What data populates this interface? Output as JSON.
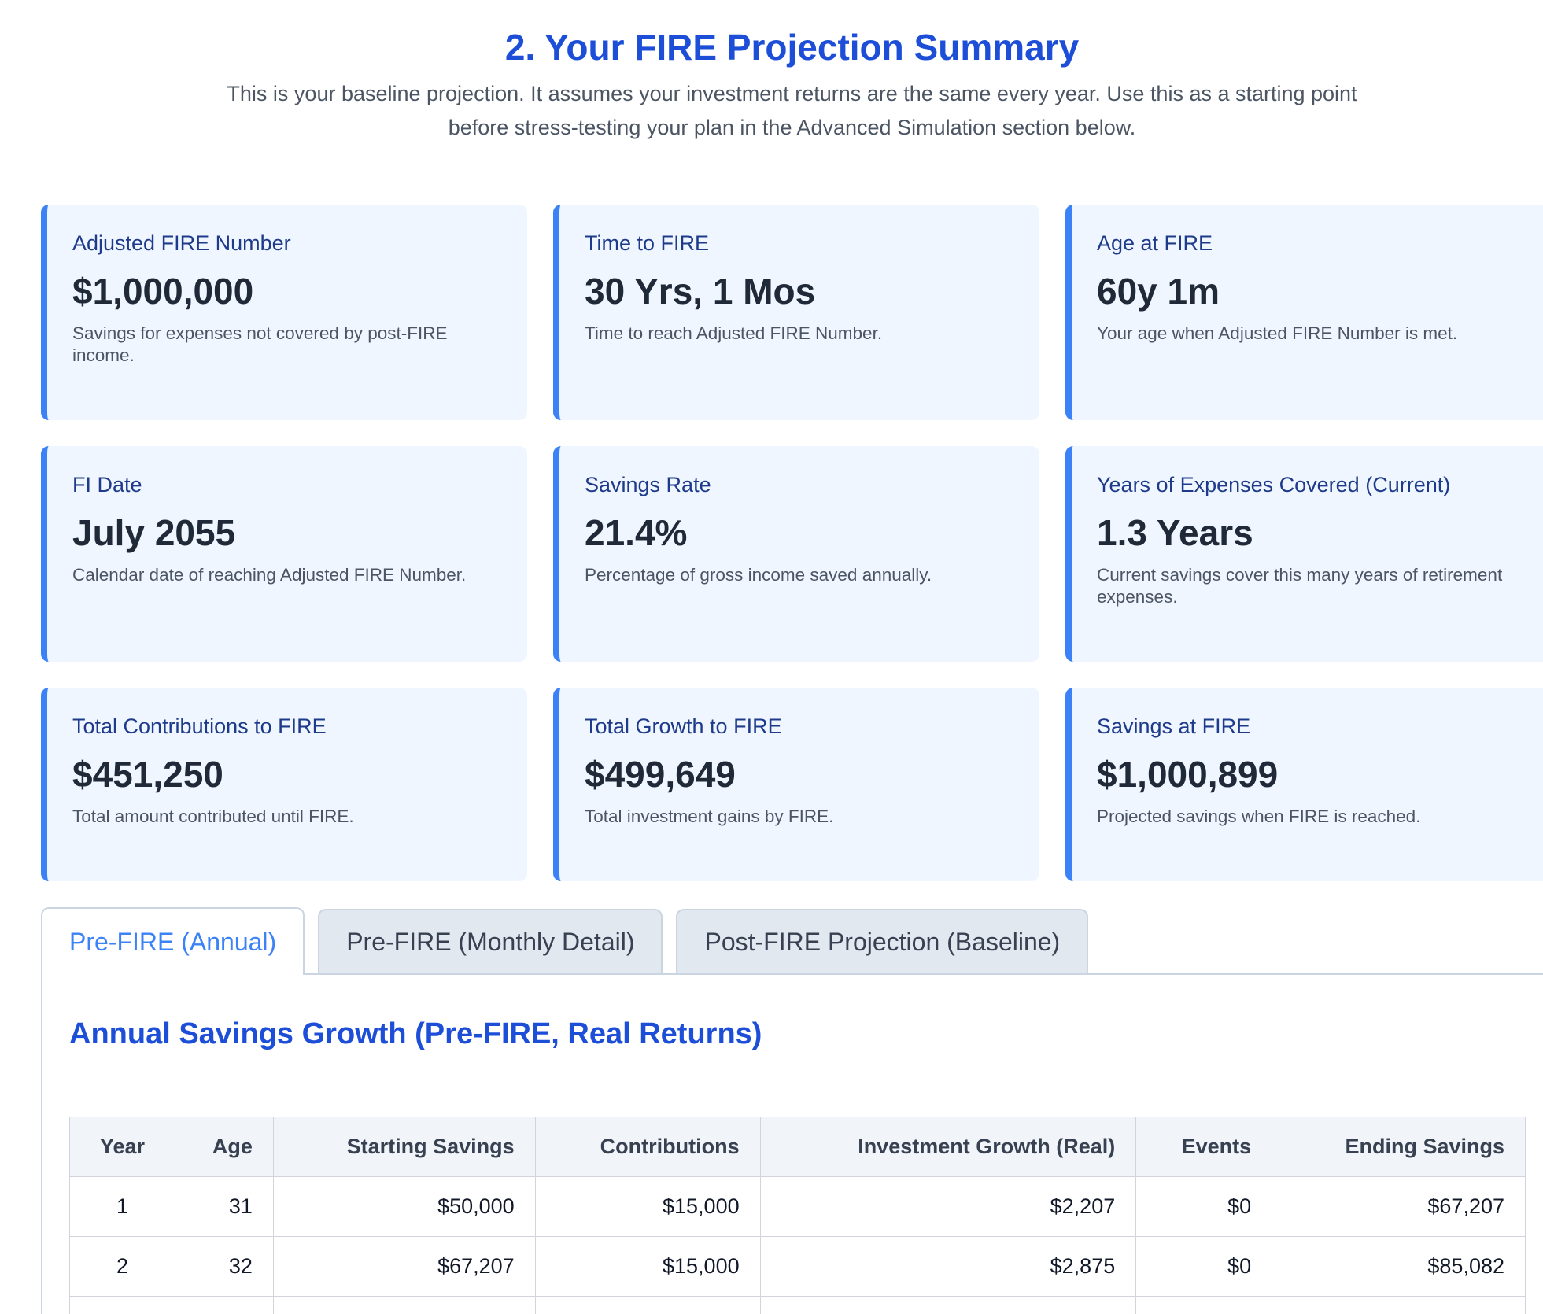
{
  "header": {
    "title": "2. Your FIRE Projection Summary",
    "subtitle": "This is your baseline projection. It assumes your investment returns are the same every year. Use this as a starting point before stress-testing your plan in the Advanced Simulation section below."
  },
  "cards": [
    {
      "label": "Adjusted FIRE Number",
      "value": "$1,000,000",
      "description": "Savings for expenses not covered by post-FIRE income."
    },
    {
      "label": "Time to FIRE",
      "value": "30 Yrs, 1 Mos",
      "description": "Time to reach Adjusted FIRE Number."
    },
    {
      "label": "Age at FIRE",
      "value": "60y 1m",
      "description": "Your age when Adjusted FIRE Number is met."
    },
    {
      "label": "FI Date",
      "value": "July 2055",
      "description": "Calendar date of reaching Adjusted FIRE Number."
    },
    {
      "label": "Savings Rate",
      "value": "21.4%",
      "description": "Percentage of gross income saved annually."
    },
    {
      "label": "Years of Expenses Covered (Current)",
      "value": "1.3 Years",
      "description": "Current savings cover this many years of retirement expenses."
    },
    {
      "label": "Total Contributions to FIRE",
      "value": "$451,250",
      "description": "Total amount contributed until FIRE."
    },
    {
      "label": "Total Growth to FIRE",
      "value": "$499,649",
      "description": "Total investment gains by FIRE."
    },
    {
      "label": "Savings at FIRE",
      "value": "$1,000,899",
      "description": "Projected savings when FIRE is reached."
    }
  ],
  "tabs": [
    {
      "label": "Pre-FIRE (Annual)",
      "active": true
    },
    {
      "label": "Pre-FIRE (Monthly Detail)",
      "active": false
    },
    {
      "label": "Post-FIRE Projection (Baseline)",
      "active": false
    }
  ],
  "panel": {
    "title": "Annual Savings Growth (Pre-FIRE, Real Returns)",
    "columns": [
      "Year",
      "Age",
      "Starting Savings",
      "Contributions",
      "Investment Growth (Real)",
      "Events",
      "Ending Savings"
    ],
    "rows": [
      [
        "1",
        "31",
        "$50,000",
        "$15,000",
        "$2,207",
        "$0",
        "$67,207"
      ],
      [
        "2",
        "32",
        "$67,207",
        "$15,000",
        "$2,875",
        "$0",
        "$85,082"
      ],
      [
        "",
        "",
        "",
        "",
        "",
        "",
        ""
      ]
    ]
  }
}
